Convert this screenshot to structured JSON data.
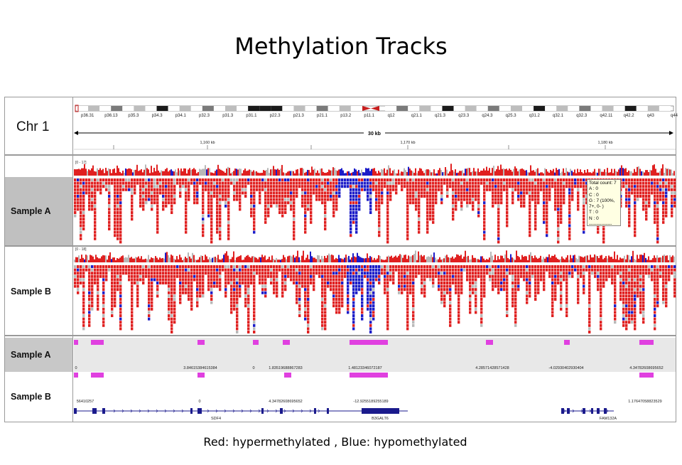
{
  "title": "Methylation Tracks",
  "caption": "Red: hypermethylated , Blue: hypomethylated",
  "chromosome": {
    "label": "Chr 1",
    "bands": [
      "p36.31",
      "p36.13",
      "p35.3",
      "p34.3",
      "p34.1",
      "p32.3",
      "p31.3",
      "p31.1",
      "p22.3",
      "p21.3",
      "p21.1",
      "p13.2",
      "p11.1",
      "q12",
      "q21.1",
      "q21.3",
      "q23.3",
      "q24.3",
      "q25.3",
      "q31.2",
      "q32.1",
      "q32.3",
      "q42.11",
      "q42.2",
      "q43",
      "q44"
    ],
    "span_label": "30 kb",
    "ruler_ticks": [
      "1,160 kb",
      "1,170 kb",
      "1,180 kb"
    ]
  },
  "tracks": {
    "sample_a": {
      "label": "Sample A",
      "range": "[0 - 17]"
    },
    "sample_b": {
      "label": "Sample B",
      "range": "[0 - 18]"
    }
  },
  "tooltip": {
    "lines": [
      "Total count: 7",
      "A : 0",
      "C : 0",
      "G : 7 (100%, 7+, 0- )",
      "T : 0",
      "N : 0",
      "---------------"
    ]
  },
  "segments": {
    "sample_a": {
      "label": "Sample A",
      "values": [
        "0",
        "3.84615384615384",
        "0",
        "1.83519688867283",
        "1.48123346072187",
        "4.28571428571428",
        "-4.02930402930404",
        "4.34782608695652"
      ]
    },
    "sample_b": {
      "label": "Sample B",
      "values": [
        "56410257",
        "0",
        "4.34782608695652",
        "-12.9255189255189",
        "1.17647058823529"
      ]
    }
  },
  "genes": [
    "SDF4",
    "B3GALT6",
    "FAM132A"
  ],
  "colors": {
    "hyper": "#e02020",
    "hypo": "#1c1cc8",
    "neutral": "#b8b8b8",
    "segment": "#e040e0",
    "gene": "#1a1a8c",
    "band_gray": "#8a8a8a",
    "centromere": "#c81e1e"
  }
}
